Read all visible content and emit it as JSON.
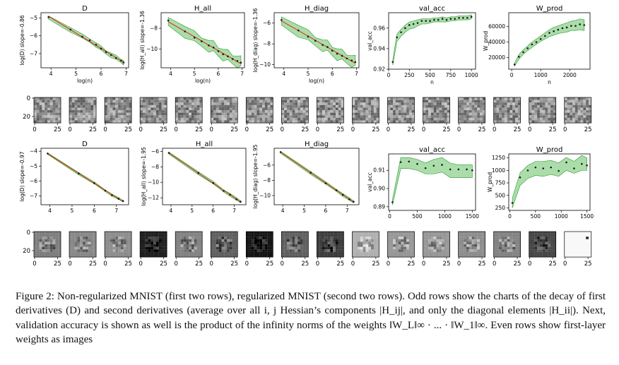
{
  "rows": [
    {
      "panels": [
        {
          "type": "loglog",
          "title": "D",
          "ylabel": "log(D) slope=-0.86",
          "xlabel": "log(n)",
          "x": [
            3.9,
            4.78,
            5.25,
            5.55,
            5.8,
            6.0,
            6.2,
            6.4,
            6.6,
            6.8,
            6.9
          ],
          "y": [
            -4.95,
            -5.65,
            -6.05,
            -6.25,
            -6.5,
            -6.72,
            -6.92,
            -7.08,
            -7.25,
            -7.4,
            -7.5
          ],
          "band": 0.07,
          "xlim": [
            3.6,
            7.1
          ],
          "ylim": [
            -7.8,
            -4.7
          ],
          "xticks": [
            4,
            5,
            6,
            7
          ],
          "yticks": [
            -5,
            -6,
            -7
          ]
        },
        {
          "type": "loglog",
          "title": "H_all",
          "ylabel": "log(H_all) slope=-1.36",
          "xlabel": "log(n)",
          "x": [
            3.9,
            4.6,
            5.0,
            5.3,
            5.6,
            5.8,
            6.0,
            6.2,
            6.4,
            6.6,
            6.8,
            6.95
          ],
          "y": [
            -7.25,
            -8.3,
            -8.9,
            -9.25,
            -9.65,
            -9.85,
            -10.2,
            -10.5,
            -10.7,
            -10.95,
            -11.15,
            -11.3
          ],
          "band": 0.3,
          "xlim": [
            3.6,
            7.1
          ],
          "ylim": [
            -11.8,
            -6.5
          ],
          "xticks": [
            4,
            5,
            6,
            7
          ],
          "yticks": [
            -8,
            -10
          ]
        },
        {
          "type": "loglog",
          "title": "H_diag",
          "ylabel": "log(H_diag) slope=-1.36",
          "xlabel": "log(n)",
          "x": [
            3.9,
            4.6,
            5.0,
            5.3,
            5.6,
            5.8,
            6.0,
            6.2,
            6.4,
            6.6,
            6.8,
            6.95
          ],
          "y": [
            -5.7,
            -6.7,
            -7.3,
            -7.7,
            -8.1,
            -8.3,
            -8.65,
            -8.95,
            -9.15,
            -9.4,
            -9.6,
            -9.75
          ],
          "band": 0.3,
          "xlim": [
            3.6,
            7.1
          ],
          "ylim": [
            -10.3,
            -5.0
          ],
          "xticks": [
            4,
            5,
            6,
            7
          ],
          "yticks": [
            -6,
            -8,
            -10
          ]
        },
        {
          "type": "band",
          "title": "val_acc",
          "ylabel": "val_acc",
          "xlabel": "n",
          "x": [
            50,
            100,
            150,
            200,
            250,
            300,
            350,
            400,
            450,
            500,
            550,
            600,
            650,
            700,
            750,
            800,
            850,
            900,
            950,
            1000
          ],
          "y": [
            0.927,
            0.951,
            0.956,
            0.96,
            0.963,
            0.964,
            0.965,
            0.967,
            0.967,
            0.967,
            0.968,
            0.968,
            0.969,
            0.968,
            0.969,
            0.969,
            0.97,
            0.97,
            0.97,
            0.971
          ],
          "lo": [
            0.924,
            0.947,
            0.952,
            0.956,
            0.959,
            0.96,
            0.962,
            0.964,
            0.964,
            0.965,
            0.966,
            0.966,
            0.966,
            0.966,
            0.967,
            0.967,
            0.968,
            0.968,
            0.968,
            0.969
          ],
          "hi": [
            0.929,
            0.954,
            0.959,
            0.963,
            0.966,
            0.967,
            0.968,
            0.969,
            0.969,
            0.969,
            0.97,
            0.97,
            0.971,
            0.97,
            0.971,
            0.971,
            0.972,
            0.972,
            0.972,
            0.973
          ],
          "xlim": [
            0,
            1050
          ],
          "ylim": [
            0.92,
            0.975
          ],
          "xticks": [
            0,
            250,
            500,
            750,
            1000
          ],
          "yticks": [
            0.92,
            0.94,
            0.96
          ],
          "yticklabels": [
            "0.92",
            "0.94",
            "0.96"
          ]
        },
        {
          "type": "band",
          "title": "W_prod",
          "ylabel": "W_prod",
          "xlabel": "n",
          "x": [
            100,
            250,
            400,
            550,
            700,
            850,
            1000,
            1150,
            1300,
            1450,
            1600,
            1750,
            1900,
            2050,
            2200,
            2350,
            2500
          ],
          "y": [
            11000,
            21000,
            27000,
            32000,
            37000,
            40000,
            44000,
            48000,
            52000,
            54000,
            56000,
            58000,
            59000,
            61000,
            61000,
            63000,
            62000
          ],
          "lo": [
            9000,
            18000,
            24000,
            29000,
            33000,
            37000,
            41000,
            44000,
            47000,
            49000,
            51000,
            52000,
            53000,
            55000,
            55000,
            56000,
            55000
          ],
          "hi": [
            13000,
            24000,
            30000,
            35000,
            40000,
            44000,
            48000,
            52000,
            56000,
            59000,
            61000,
            63000,
            65000,
            67000,
            68000,
            70000,
            69000
          ],
          "xlim": [
            -100,
            2700
          ],
          "ylim": [
            5000,
            78000
          ],
          "xticks": [
            0,
            1000,
            2000
          ],
          "yticks": [
            20000,
            40000,
            60000
          ],
          "yticklabels": [
            "20000",
            "40000",
            "60000"
          ]
        }
      ]
    },
    {
      "images": {
        "count": 16,
        "ytick_labels": [
          "0",
          "20"
        ],
        "xtick_labels": [
          "0",
          "25"
        ],
        "style": "noise"
      }
    },
    {
      "panels": [
        {
          "type": "loglog",
          "title": "D",
          "ylabel": "log(D) slope=-0.97",
          "xlabel": "",
          "x": [
            3.9,
            5.3,
            6.0,
            6.5,
            6.8,
            7.1,
            7.3
          ],
          "y": [
            -4.15,
            -5.5,
            -6.15,
            -6.65,
            -6.95,
            -7.2,
            -7.35
          ],
          "band": 0.04,
          "xlim": [
            3.6,
            7.55
          ],
          "ylim": [
            -7.6,
            -3.8
          ],
          "xticks": [
            4,
            5,
            6,
            7
          ],
          "yticks": [
            -4,
            -5,
            -6,
            -7
          ]
        },
        {
          "type": "loglog",
          "title": "H_all",
          "ylabel": "log(H_all) slope=-1.95",
          "xlabel": "",
          "x": [
            3.9,
            5.3,
            6.0,
            6.5,
            6.8,
            7.1,
            7.3
          ],
          "y": [
            -6.2,
            -8.8,
            -10.1,
            -11.1,
            -11.6,
            -12.2,
            -12.5
          ],
          "band": 0.1,
          "xlim": [
            3.6,
            7.55
          ],
          "ylim": [
            -12.9,
            -5.6
          ],
          "xticks": [
            4,
            5,
            6,
            7
          ],
          "yticks": [
            -6,
            -8,
            -10,
            -12
          ]
        },
        {
          "type": "loglog",
          "title": "H_diag",
          "ylabel": "log(H_diag) slope=-1.95",
          "xlabel": "",
          "x": [
            3.9,
            5.3,
            6.0,
            6.5,
            6.8,
            7.1,
            7.3
          ],
          "y": [
            -4.3,
            -7.0,
            -8.4,
            -9.3,
            -9.9,
            -10.5,
            -10.8
          ],
          "band": 0.1,
          "xlim": [
            3.6,
            7.55
          ],
          "ylim": [
            -11.2,
            -3.8
          ],
          "xticks": [
            4,
            5,
            6,
            7
          ],
          "yticks": [
            -6,
            -8,
            -10
          ]
        },
        {
          "type": "band",
          "title": "val_acc",
          "ylabel": "val_acc",
          "xlabel": "",
          "x": [
            50,
            200,
            350,
            500,
            650,
            800,
            950,
            1100,
            1250,
            1400,
            1500
          ],
          "y": [
            0.8925,
            0.9145,
            0.9148,
            0.9135,
            0.9112,
            0.9125,
            0.913,
            0.9105,
            0.9105,
            0.9105,
            0.91
          ],
          "lo": [
            0.891,
            0.911,
            0.911,
            0.91,
            0.908,
            0.908,
            0.909,
            0.906,
            0.906,
            0.906,
            0.906
          ],
          "hi": [
            0.894,
            0.917,
            0.917,
            0.916,
            0.914,
            0.916,
            0.917,
            0.914,
            0.913,
            0.913,
            0.913
          ],
          "xlim": [
            -20,
            1560
          ],
          "ylim": [
            0.888,
            0.919
          ],
          "xticks": [
            0,
            500,
            1000,
            1500
          ],
          "yticks": [
            0.89,
            0.9,
            0.91
          ],
          "yticklabels": [
            "0.89",
            "0.90",
            "0.91"
          ]
        },
        {
          "type": "band",
          "title": "W_prod",
          "ylabel": "W_prod",
          "xlabel": "",
          "x": [
            50,
            200,
            350,
            500,
            650,
            800,
            950,
            1100,
            1250,
            1400,
            1500
          ],
          "y": [
            350,
            860,
            1000,
            1060,
            1040,
            1060,
            990,
            1160,
            1040,
            1130,
            1100
          ],
          "lo": [
            250,
            700,
            840,
            900,
            880,
            920,
            880,
            1000,
            940,
            1000,
            1000
          ],
          "hi": [
            450,
            950,
            1100,
            1180,
            1180,
            1200,
            1150,
            1260,
            1180,
            1300,
            1250
          ],
          "xlim": [
            -20,
            1560
          ],
          "ylim": [
            200,
            1330
          ],
          "xticks": [
            0,
            500,
            1000,
            1500
          ],
          "yticks": [
            250,
            500,
            750,
            1000,
            1250
          ],
          "yticklabels": [
            "250",
            "500",
            "750",
            "1000",
            "1250"
          ]
        }
      ]
    },
    {
      "images": {
        "count": 16,
        "ytick_labels": [
          "0",
          "20"
        ],
        "xtick_labels": [
          "0",
          "25"
        ],
        "style": "digit"
      }
    }
  ],
  "caption": {
    "label": "Figure 2:",
    "text": "Non-regularized MNIST (first two rows), regularized MNIST (second two rows). Odd rows show the charts of the decay of first derivatives (D) and second derivatives (average over all i, j Hessian’s components |H_ij|, and only the diagonal elements |H_ii|). Next, validation accuracy is shown as well is the product of the infinity norms of the weights ‖W_L‖∞ · ... · ‖W_1‖∞. Even rows show first-layer weights as images"
  },
  "colors": {
    "band": "#8fd18f",
    "band_stroke": "#2e9a2e",
    "fit": "#d9331a",
    "points": "#1a1a1a",
    "axis": "#000000"
  }
}
